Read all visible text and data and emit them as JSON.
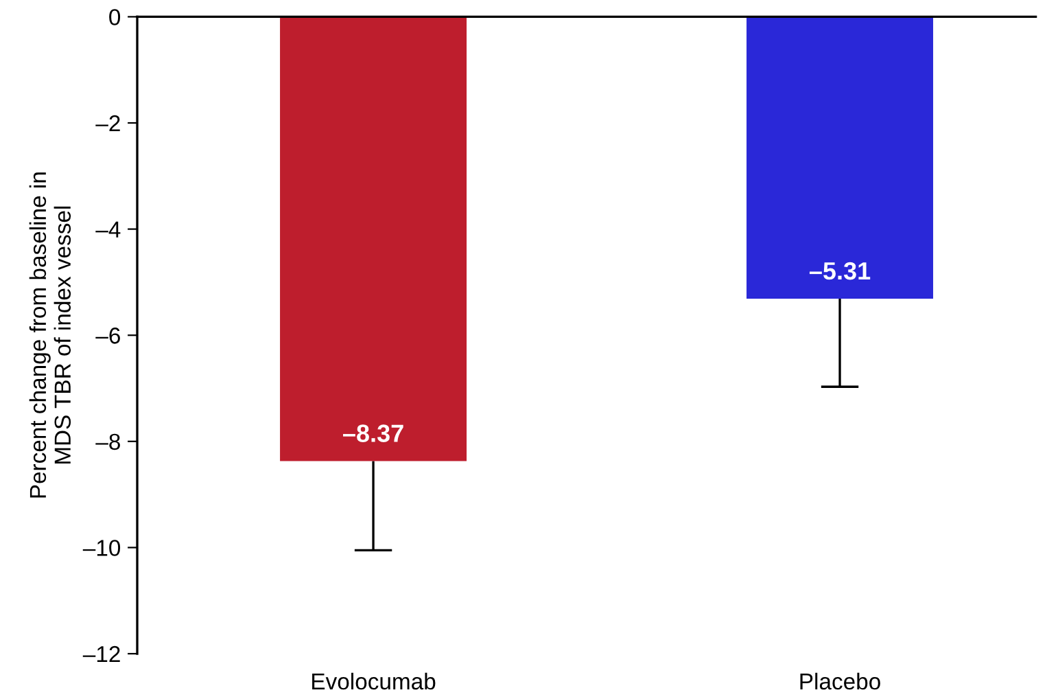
{
  "chart_data": {
    "type": "bar",
    "ylabel": "Percent change from baseline in\nMDS TBR of index vessel",
    "categories": [
      "Evolocumab",
      "Placebo"
    ],
    "values": [
      -8.37,
      -5.31
    ],
    "colors": [
      "#be1e2d",
      "#2a28d8"
    ],
    "errors": [
      [
        -10.05,
        -8.37
      ],
      [
        -6.97,
        -5.31
      ]
    ],
    "value_labels": [
      "–8.37",
      "–5.31"
    ],
    "ylim": [
      -12,
      0
    ],
    "yticks": [
      {
        "value": 0,
        "label": "0"
      },
      {
        "value": -2,
        "label": "–2"
      },
      {
        "value": -4,
        "label": "–4"
      },
      {
        "value": -6,
        "label": "–6"
      },
      {
        "value": -8,
        "label": "–8"
      },
      {
        "value": -10,
        "label": "–10"
      },
      {
        "value": -12,
        "label": "–12"
      }
    ],
    "grid": false,
    "legend": false
  }
}
